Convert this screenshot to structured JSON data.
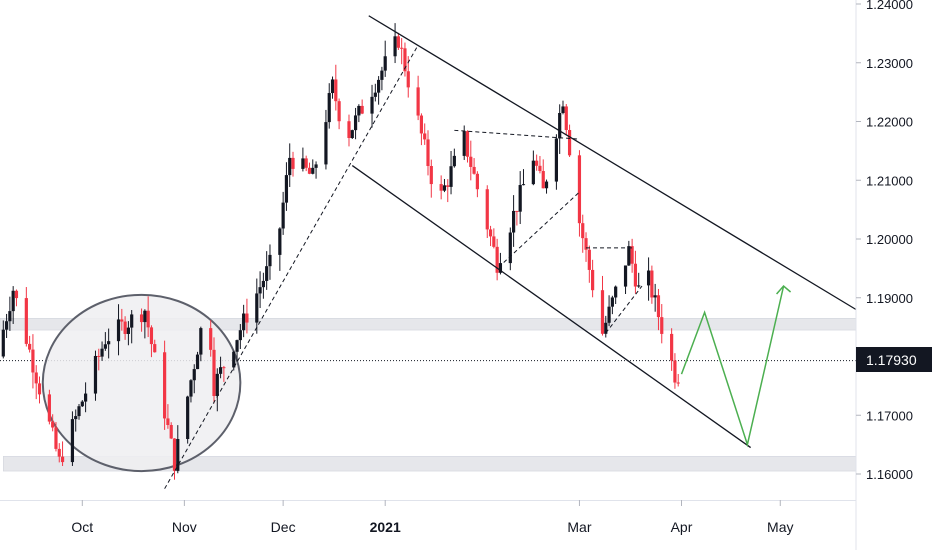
{
  "chart_data": {
    "type": "candlestick",
    "title": "",
    "xlabel": "",
    "ylabel": "",
    "ylim": [
      1.155,
      1.2405
    ],
    "y_ticks": [
      {
        "label": "1.24000",
        "value": 1.24
      },
      {
        "label": "1.23000",
        "value": 1.23
      },
      {
        "label": "1.22000",
        "value": 1.22
      },
      {
        "label": "1.21000",
        "value": 1.21
      },
      {
        "label": "1.20000",
        "value": 1.2
      },
      {
        "label": "1.19000",
        "value": 1.19
      },
      {
        "label": "1.17000",
        "value": 1.17
      },
      {
        "label": "1.16000",
        "value": 1.16
      }
    ],
    "x_ticks": [
      {
        "label": "Oct",
        "date": "2020-10-01",
        "bold": false
      },
      {
        "label": "Nov",
        "date": "2020-11-01",
        "bold": false
      },
      {
        "label": "Dec",
        "date": "2020-12-01",
        "bold": false
      },
      {
        "label": "2021",
        "date": "2021-01-01",
        "bold": true
      },
      {
        "label": "Mar",
        "date": "2021-03-01",
        "bold": false
      },
      {
        "label": "Apr",
        "date": "2021-04-01",
        "bold": false
      },
      {
        "label": "May",
        "date": "2021-05-01",
        "bold": false
      }
    ],
    "x_range": [
      "2020-09-06",
      "2021-05-24"
    ],
    "current_price": {
      "label": "1.17930",
      "value": 1.1793
    },
    "colors": {
      "up": "#131722",
      "down": "#f23645",
      "projection": "#4caf50",
      "zone": "#e6e7eb",
      "circle_fill": "#eeeff1",
      "line": "#131722"
    },
    "swing_points": [
      {
        "date": "2020-09-06",
        "value": 1.18
      },
      {
        "date": "2020-09-11",
        "value": 1.1915
      },
      {
        "date": "2020-09-25",
        "value": 1.162
      },
      {
        "date": "2020-10-09",
        "value": 1.183
      },
      {
        "date": "2020-10-21",
        "value": 1.188
      },
      {
        "date": "2020-10-30",
        "value": 1.162
      },
      {
        "date": "2020-11-09",
        "value": 1.19
      },
      {
        "date": "2020-11-11",
        "value": 1.175
      },
      {
        "date": "2020-11-30",
        "value": 1.198
      },
      {
        "date": "2020-12-04",
        "value": 1.214
      },
      {
        "date": "2020-12-11",
        "value": 1.2105
      },
      {
        "date": "2020-12-17",
        "value": 1.226
      },
      {
        "date": "2020-12-21",
        "value": 1.217
      },
      {
        "date": "2021-01-06",
        "value": 1.234
      },
      {
        "date": "2021-01-18",
        "value": 1.206
      },
      {
        "date": "2021-01-26",
        "value": 1.217
      },
      {
        "date": "2021-02-05",
        "value": 1.196
      },
      {
        "date": "2021-02-16",
        "value": 1.214
      },
      {
        "date": "2021-02-19",
        "value": 1.208
      },
      {
        "date": "2021-02-25",
        "value": 1.224
      },
      {
        "date": "2021-03-02",
        "value": 1.203
      },
      {
        "date": "2021-03-09",
        "value": 1.184
      },
      {
        "date": "2021-03-17",
        "value": 1.198
      },
      {
        "date": "2021-03-22",
        "value": 1.187
      },
      {
        "date": "2021-03-23",
        "value": 1.193
      },
      {
        "date": "2021-03-31",
        "value": 1.177
      }
    ],
    "annotations": {
      "zones": [
        {
          "from": 1.1845,
          "to": 1.1865,
          "start": "2020-09-06",
          "end": "2021-05-24"
        },
        {
          "from": 1.1605,
          "to": 1.163,
          "start": "2020-09-07",
          "end": "2021-05-24"
        }
      ],
      "circle": {
        "center_date": "2020-10-19",
        "center_value": 1.1755,
        "rx_days": 30,
        "ry_value": 0.015
      },
      "channel_upper": [
        {
          "date": "2020-12-27",
          "value": 1.238
        },
        {
          "date": "2021-05-24",
          "value": 1.188
        }
      ],
      "channel_lower": [
        {
          "date": "2020-12-22",
          "value": 1.2125
        },
        {
          "date": "2021-04-22",
          "value": 1.1645
        }
      ],
      "dashed_trendlines": [
        [
          {
            "date": "2020-10-26",
            "value": 1.1575
          },
          {
            "date": "2021-01-11",
            "value": 1.233
          }
        ],
        [
          {
            "date": "2021-01-22",
            "value": 1.2185
          },
          {
            "date": "2021-03-01",
            "value": 1.217
          }
        ],
        [
          {
            "date": "2021-02-06",
            "value": 1.196
          },
          {
            "date": "2021-03-01",
            "value": 1.208
          }
        ],
        [
          {
            "date": "2021-03-03",
            "value": 1.1985
          },
          {
            "date": "2021-03-17",
            "value": 1.1985
          }
        ],
        [
          {
            "date": "2021-03-09",
            "value": 1.184
          },
          {
            "date": "2021-03-20",
            "value": 1.192
          }
        ]
      ],
      "projection": [
        {
          "date": "2021-04-01",
          "value": 1.177
        },
        {
          "date": "2021-04-08",
          "value": 1.1875
        },
        {
          "date": "2021-04-21",
          "value": 1.165
        },
        {
          "date": "2021-05-02",
          "value": 1.192
        }
      ]
    }
  }
}
